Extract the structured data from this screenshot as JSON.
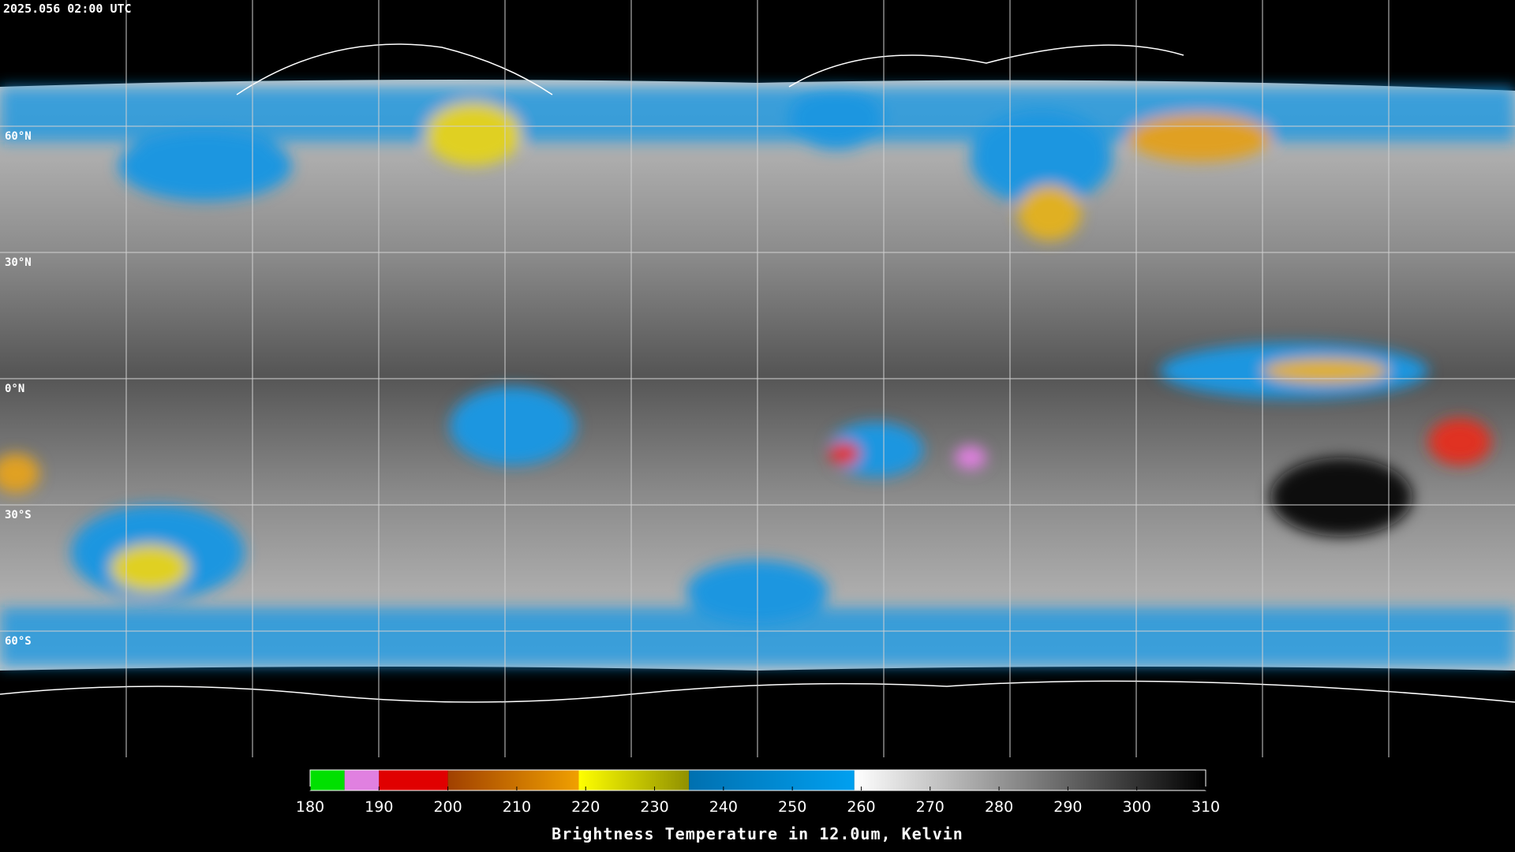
{
  "timestamp": "2025.056 02:00 UTC",
  "map": {
    "xlim": [
      -180,
      180
    ],
    "ylim": [
      90,
      -90
    ],
    "xticks": [
      -150,
      -120,
      -90,
      -60,
      -30,
      0,
      30,
      60,
      90,
      120,
      150
    ],
    "yticks": [
      {
        "value": 60,
        "label": "60°N"
      },
      {
        "value": 30,
        "label": "30°N"
      },
      {
        "value": 0,
        "label": "0°N"
      },
      {
        "value": -30,
        "label": "30°S"
      },
      {
        "value": -60,
        "label": "60°S"
      }
    ],
    "grid_color": "#d0d0d0"
  },
  "colorbar": {
    "title": "Brightness Temperature in 12.0um, Kelvin",
    "lim": [
      180,
      310
    ],
    "ticks": [
      180,
      190,
      200,
      210,
      220,
      230,
      240,
      250,
      260,
      270,
      280,
      290,
      300,
      310
    ],
    "segments": [
      {
        "from": 180,
        "to": 185,
        "color": "#00e000",
        "color2": "#00e000"
      },
      {
        "from": 185,
        "to": 190,
        "color": "#e080e0",
        "color2": "#e080e0"
      },
      {
        "from": 190,
        "to": 200,
        "color": "#e00000",
        "color2": "#e00000"
      },
      {
        "from": 200,
        "to": 219,
        "color": "#a04000",
        "color2": "#f0a000"
      },
      {
        "from": 219,
        "to": 235,
        "color": "#ffff00",
        "color2": "#909000"
      },
      {
        "from": 235,
        "to": 259,
        "color": "#0070b0",
        "color2": "#00a0f0"
      },
      {
        "from": 259,
        "to": 310,
        "color": "#ffffff",
        "color2": "#000000"
      }
    ]
  }
}
